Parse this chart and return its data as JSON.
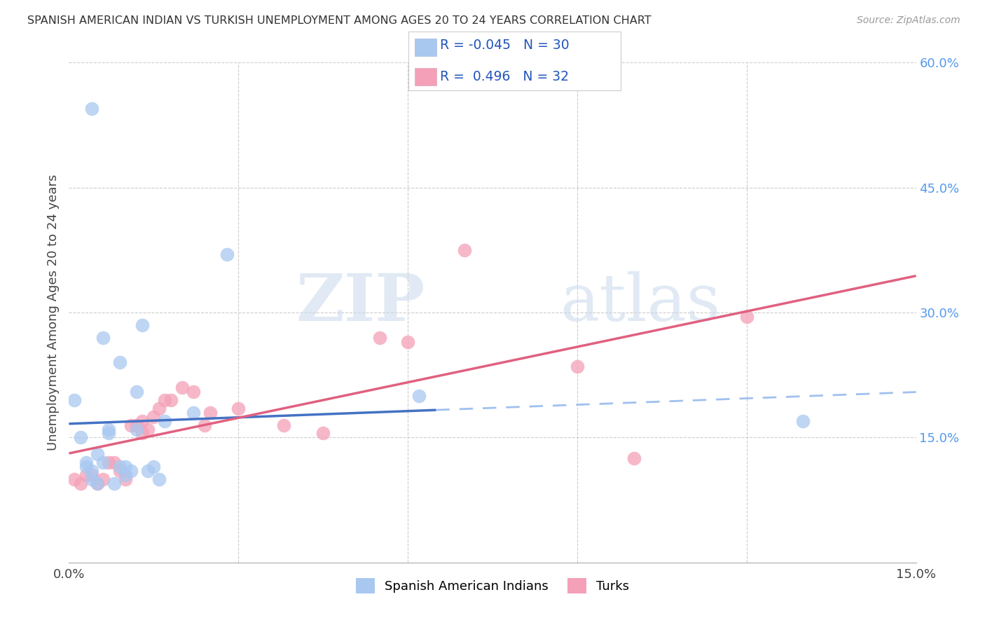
{
  "title": "SPANISH AMERICAN INDIAN VS TURKISH UNEMPLOYMENT AMONG AGES 20 TO 24 YEARS CORRELATION CHART",
  "source": "Source: ZipAtlas.com",
  "ylabel": "Unemployment Among Ages 20 to 24 years",
  "xlim": [
    0.0,
    0.15
  ],
  "ylim": [
    0.0,
    0.6
  ],
  "legend_r1": "-0.045",
  "legend_n1": "30",
  "legend_r2": "0.496",
  "legend_n2": "32",
  "color_blue": "#A8C8F0",
  "color_pink": "#F4A0B8",
  "color_blue_line": "#4472C4",
  "color_pink_line": "#E06080",
  "color_dashed": "#A0C0F0",
  "watermark_zip": "ZIP",
  "watermark_atlas": "atlas",
  "label1": "Spanish American Indians",
  "label2": "Turks",
  "blue_x": [
    0.001,
    0.002,
    0.003,
    0.003,
    0.004,
    0.004,
    0.004,
    0.005,
    0.005,
    0.006,
    0.006,
    0.007,
    0.007,
    0.008,
    0.009,
    0.009,
    0.01,
    0.01,
    0.011,
    0.012,
    0.012,
    0.013,
    0.014,
    0.015,
    0.016,
    0.017,
    0.022,
    0.028,
    0.062,
    0.13
  ],
  "blue_y": [
    0.195,
    0.15,
    0.115,
    0.12,
    0.1,
    0.11,
    0.545,
    0.095,
    0.13,
    0.12,
    0.27,
    0.155,
    0.16,
    0.095,
    0.115,
    0.24,
    0.105,
    0.115,
    0.11,
    0.205,
    0.16,
    0.285,
    0.11,
    0.115,
    0.1,
    0.17,
    0.18,
    0.37,
    0.2,
    0.17
  ],
  "pink_x": [
    0.001,
    0.002,
    0.003,
    0.004,
    0.005,
    0.006,
    0.007,
    0.008,
    0.009,
    0.01,
    0.011,
    0.012,
    0.013,
    0.013,
    0.014,
    0.015,
    0.016,
    0.017,
    0.018,
    0.02,
    0.022,
    0.024,
    0.025,
    0.03,
    0.038,
    0.045,
    0.055,
    0.06,
    0.07,
    0.09,
    0.1,
    0.12
  ],
  "pink_y": [
    0.1,
    0.095,
    0.105,
    0.105,
    0.095,
    0.1,
    0.12,
    0.12,
    0.11,
    0.1,
    0.165,
    0.165,
    0.17,
    0.155,
    0.16,
    0.175,
    0.185,
    0.195,
    0.195,
    0.21,
    0.205,
    0.165,
    0.18,
    0.185,
    0.165,
    0.155,
    0.27,
    0.265,
    0.375,
    0.235,
    0.125,
    0.295
  ],
  "blue_line_solid_xlim": [
    0.0,
    0.065
  ],
  "blue_line_dash_xlim": [
    0.065,
    0.15
  ]
}
